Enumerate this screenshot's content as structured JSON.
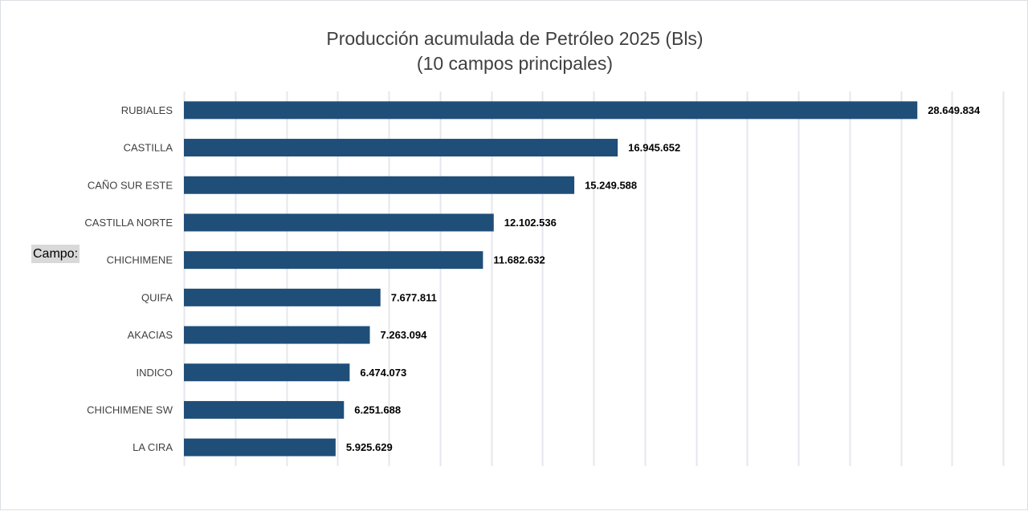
{
  "chart_data": {
    "type": "bar",
    "orientation": "horizontal",
    "title": [
      "Producción acumulada de Petróleo 2025 (Bls)",
      "(10 campos principales)"
    ],
    "filter_label": "Campo:",
    "categories": [
      "RUBIALES",
      "CASTILLA",
      "CAÑO SUR ESTE",
      "CASTILLA NORTE",
      "CHICHIMENE",
      "QUIFA",
      "AKACIAS",
      "INDICO",
      "CHICHIMENE SW",
      "LA CIRA"
    ],
    "values": [
      28649834,
      16945652,
      15249588,
      12102536,
      11682632,
      7677811,
      7263094,
      6474073,
      6251688,
      5925629
    ],
    "data_labels": [
      "28.649.834",
      "16.945.652",
      "15.249.588",
      "12.102.536",
      "11.682.632",
      "7.677.811",
      "7.263.094",
      "6.474.073",
      "6.251.688",
      "5.925.629"
    ],
    "xlim": [
      0,
      32000000
    ],
    "x_gridline_step": 2000000,
    "grid": true,
    "tick_labels_visible": false,
    "bar_color": "#1f4e79",
    "gridline_color": "#e4e7ec"
  }
}
